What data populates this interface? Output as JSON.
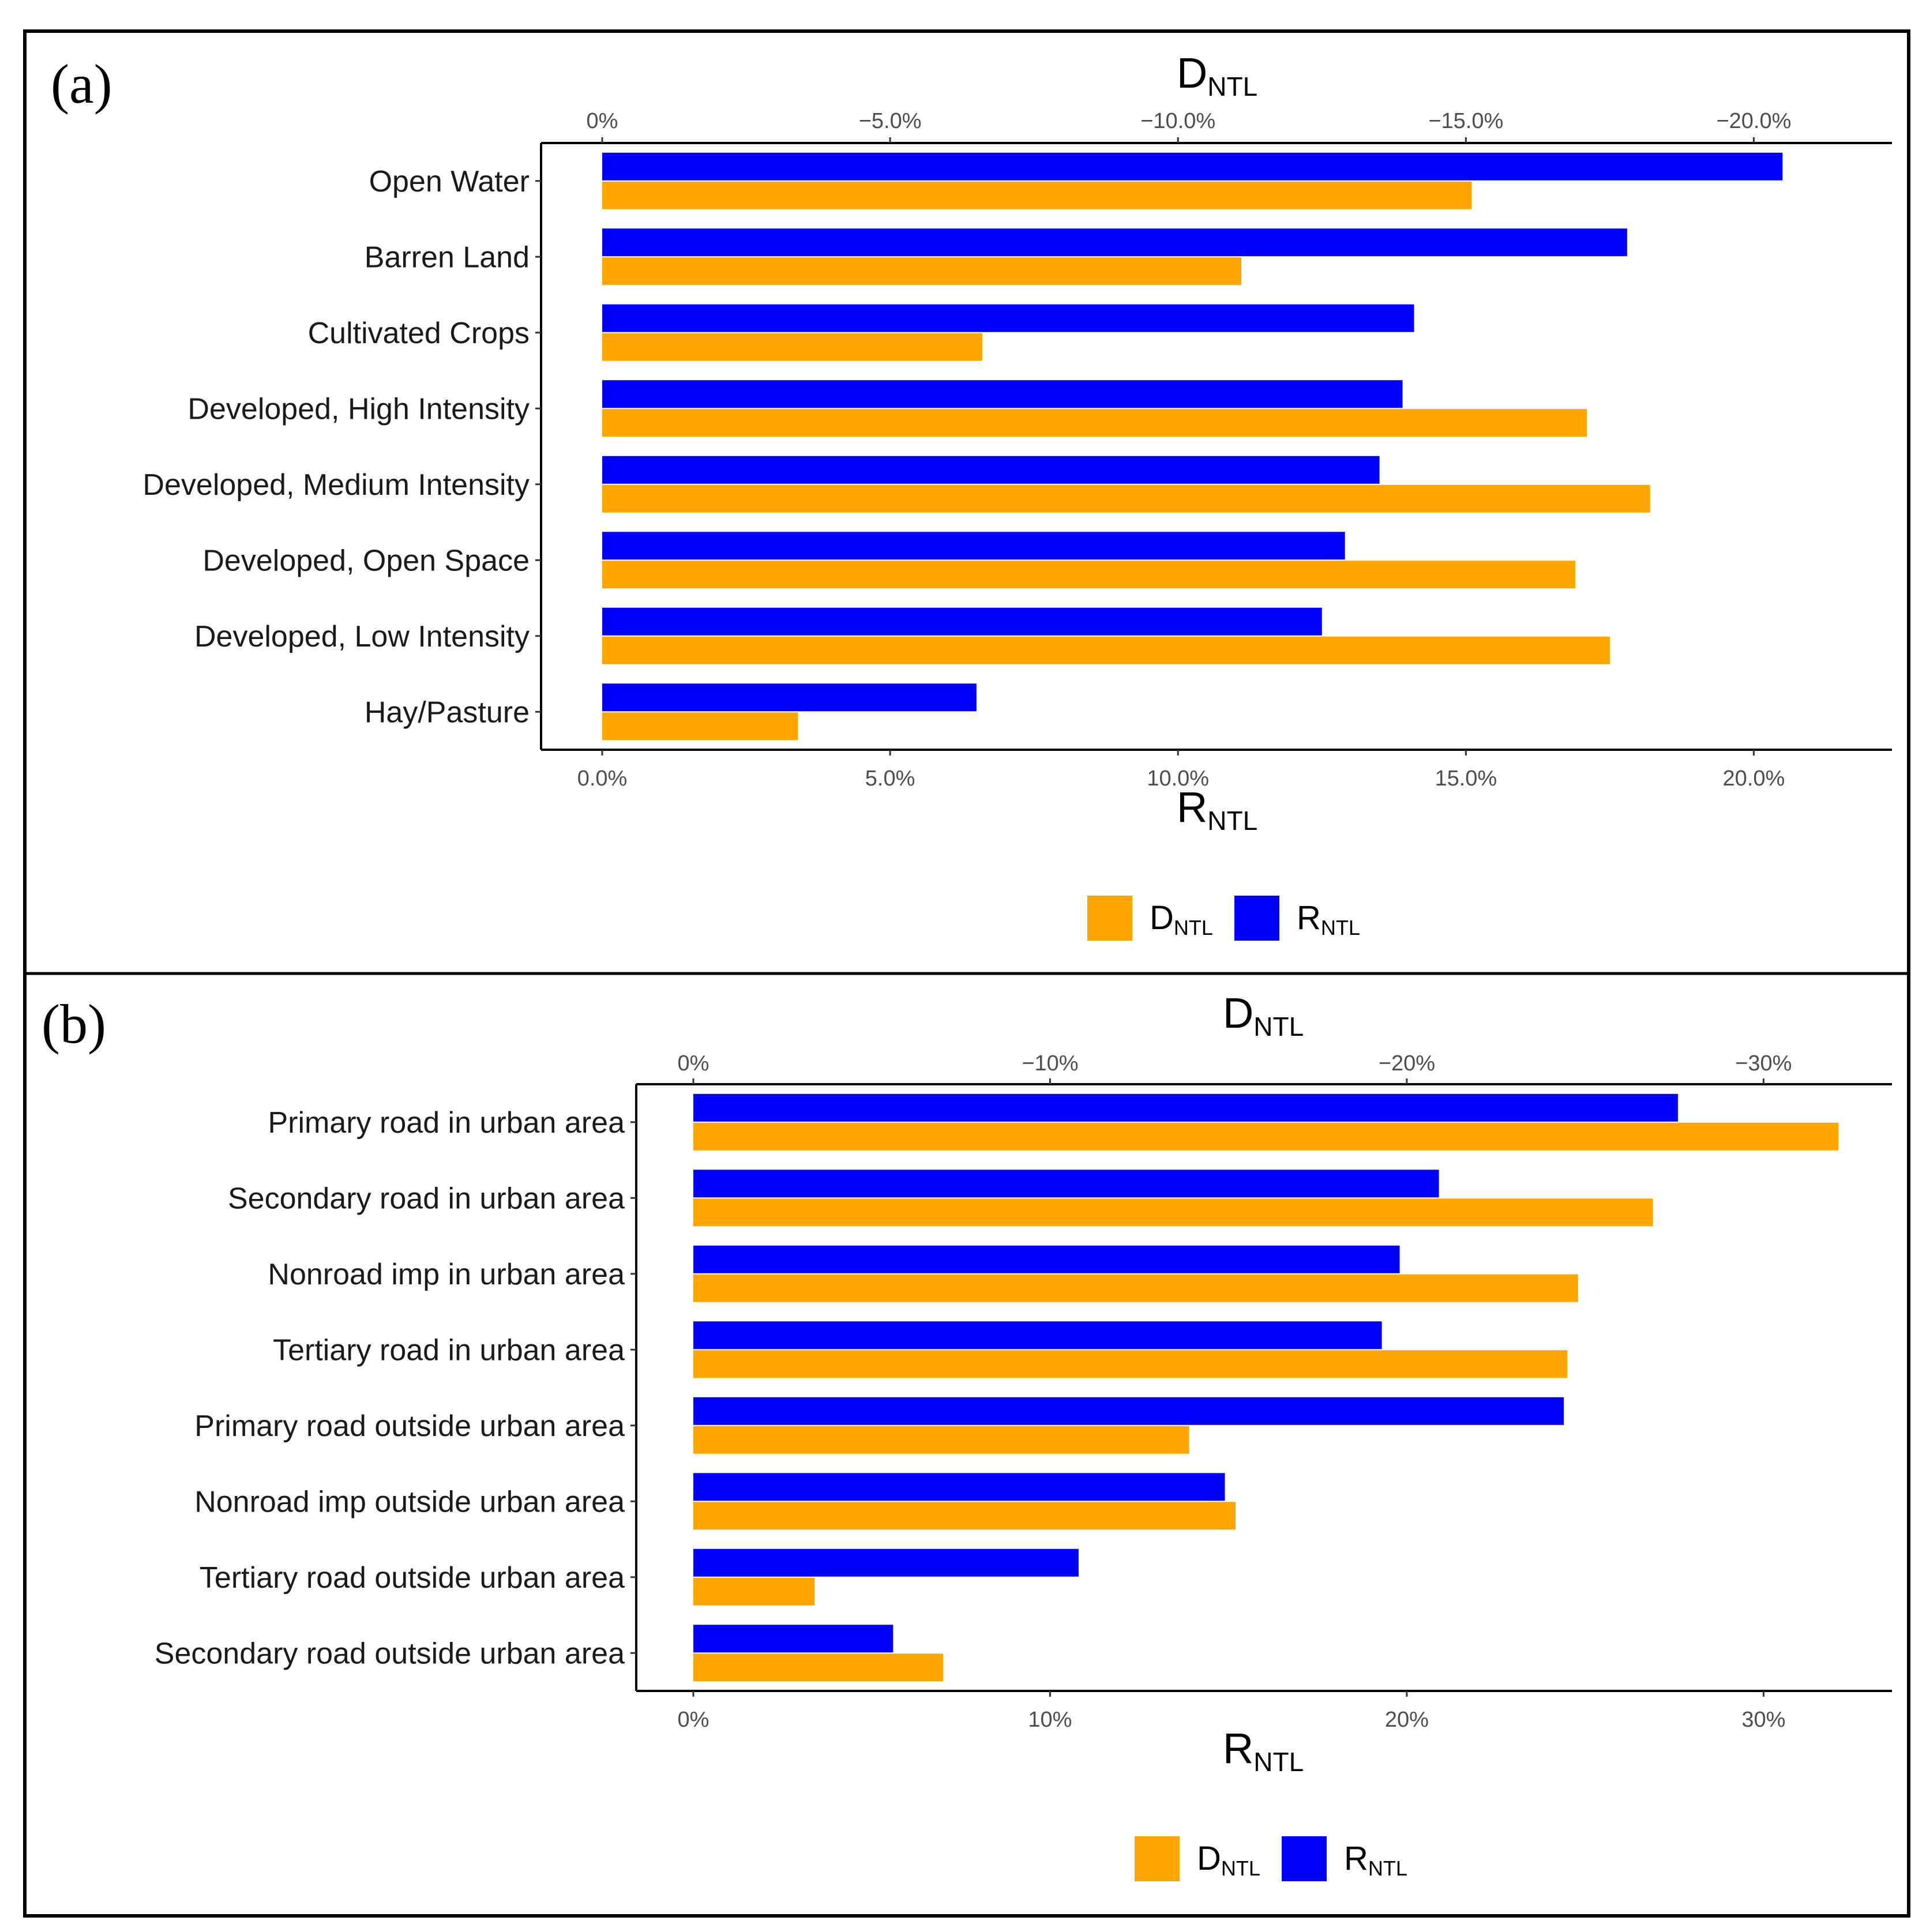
{
  "colors": {
    "d_ntl": "#FFA500",
    "r_ntl": "#0000FF"
  },
  "chart_data": [
    {
      "type": "bar",
      "orientation": "horizontal",
      "panel_label": "(a)",
      "categories": [
        "Open Water",
        "Barren Land",
        "Cultivated Crops",
        "Developed, High Intensity",
        "Developed, Medium Intensity",
        "Developed, Open Space",
        "Developed, Low Intensity",
        "Hay/Pasture"
      ],
      "series": [
        {
          "name": "R",
          "sub": "NTL",
          "key": "r_ntl",
          "values": [
            20.5,
            17.8,
            14.1,
            13.9,
            13.5,
            12.9,
            12.5,
            6.5
          ]
        },
        {
          "name": "D",
          "sub": "NTL",
          "key": "d_ntl",
          "values": [
            15.1,
            11.1,
            6.6,
            17.1,
            18.2,
            16.9,
            17.5,
            3.4
          ]
        }
      ],
      "xlim": [
        0,
        22.4
      ],
      "top_axis": {
        "title": "D",
        "sub": "NTL",
        "tick_values": [
          0,
          5,
          10,
          15,
          20
        ],
        "tick_labels": [
          "0%",
          "−5.0%",
          "−10.0%",
          "−15.0%",
          "−20.0%"
        ]
      },
      "bottom_axis": {
        "title": "R",
        "sub": "NTL",
        "tick_values": [
          0,
          5,
          10,
          15,
          20
        ],
        "tick_labels": [
          "0.0%",
          "5.0%",
          "10.0%",
          "15.0%",
          "20.0%"
        ]
      },
      "legend": [
        {
          "label": "D",
          "sub": "NTL",
          "key": "d_ntl"
        },
        {
          "label": "R",
          "sub": "NTL",
          "key": "r_ntl"
        }
      ],
      "legend_position": "bottom"
    },
    {
      "type": "bar",
      "orientation": "horizontal",
      "panel_label": "(b)",
      "categories": [
        "Primary road in urban area",
        "Secondary road in urban area",
        "Nonroad imp in urban area",
        "Tertiary road in urban area",
        "Primary road outside urban area",
        "Nonroad imp outside urban area",
        "Tertiary road outside urban area",
        "Secondary road outside urban area"
      ],
      "series": [
        {
          "name": "R",
          "sub": "NTL",
          "key": "r_ntl",
          "values": [
            27.6,
            20.9,
            19.8,
            19.3,
            24.4,
            14.9,
            10.8,
            5.6
          ]
        },
        {
          "name": "D",
          "sub": "NTL",
          "key": "d_ntl",
          "values": [
            32.1,
            26.9,
            24.8,
            24.5,
            13.9,
            15.2,
            3.4,
            7.0
          ]
        }
      ],
      "xlim": [
        0,
        33.6
      ],
      "top_axis": {
        "title": "D",
        "sub": "NTL",
        "tick_values": [
          0,
          10,
          20,
          30
        ],
        "tick_labels": [
          "0%",
          "−10%",
          "−20%",
          "−30%"
        ]
      },
      "bottom_axis": {
        "title": "R",
        "sub": "NTL",
        "tick_values": [
          0,
          10,
          20,
          30
        ],
        "tick_labels": [
          "0%",
          "10%",
          "20%",
          "30%"
        ]
      },
      "legend": [
        {
          "label": "D",
          "sub": "NTL",
          "key": "d_ntl"
        },
        {
          "label": "R",
          "sub": "NTL",
          "key": "r_ntl"
        }
      ],
      "legend_position": "bottom"
    }
  ]
}
